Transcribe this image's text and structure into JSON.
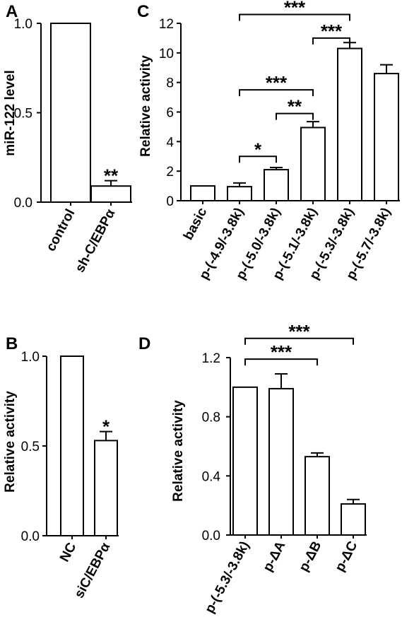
{
  "chart_data": [
    {
      "panel": "A",
      "type": "bar",
      "categories": [
        "control",
        "sh-C/EBPα"
      ],
      "values": [
        1.0,
        0.09
      ],
      "errors": [
        0,
        0.03
      ],
      "ylabel": "miR-122 level",
      "ylim": [
        0,
        1.0
      ],
      "yticks": [
        0.0,
        0.5,
        1.0
      ],
      "ytick_labels": [
        "0.0",
        "0.5",
        "1.0"
      ],
      "significance": [
        {
          "bar": 1,
          "label": "**"
        }
      ],
      "brackets": []
    },
    {
      "panel": "C",
      "type": "bar",
      "categories": [
        "basic",
        "p-(-4.9/-3.8k)",
        "p-(-5.0/-3.8k)",
        "p-(-5.1/-3.8k)",
        "p-(-5.3/-3.8k)",
        "p-(-5.7/-3.8k)"
      ],
      "values": [
        1.0,
        0.95,
        2.1,
        4.95,
        10.3,
        8.6
      ],
      "errors": [
        0,
        0.25,
        0.15,
        0.4,
        0.4,
        0.6
      ],
      "ylabel": "Relative activity",
      "ylim": [
        0,
        12
      ],
      "yticks": [
        0,
        2,
        4,
        6,
        8,
        10,
        12
      ],
      "ytick_labels": [
        "0",
        "2",
        "4",
        "6",
        "8",
        "10",
        "12"
      ],
      "significance": [],
      "brackets": [
        {
          "from": 1,
          "to": 4,
          "y": 12.6,
          "label": "***"
        },
        {
          "from": 3,
          "to": 4,
          "y": 11.0,
          "label": "***"
        },
        {
          "from": 1,
          "to": 3,
          "y": 7.5,
          "label": "***"
        },
        {
          "from": 2,
          "to": 3,
          "y": 5.9,
          "label": "**"
        },
        {
          "from": 1,
          "to": 2,
          "y": 3.0,
          "label": "*"
        }
      ]
    },
    {
      "panel": "B",
      "type": "bar",
      "categories": [
        "NC",
        "siC/EBPα"
      ],
      "values": [
        1.0,
        0.53
      ],
      "errors": [
        0,
        0.05
      ],
      "ylabel": "Relative activity",
      "ylim": [
        0,
        1.0
      ],
      "yticks": [
        0.0,
        0.5,
        1.0
      ],
      "ytick_labels": [
        "0.0",
        "0.5",
        "1.0"
      ],
      "significance": [
        {
          "bar": 1,
          "label": "*"
        }
      ],
      "brackets": []
    },
    {
      "panel": "D",
      "type": "bar",
      "categories": [
        "p-(-5.3/-3.8k)",
        "p-ΔA",
        "p-ΔB",
        "p-ΔC"
      ],
      "values": [
        1.0,
        0.99,
        0.53,
        0.21
      ],
      "errors": [
        0,
        0.1,
        0.025,
        0.03
      ],
      "ylabel": "Relative activity",
      "ylim": [
        0,
        1.2
      ],
      "yticks": [
        0.0,
        0.4,
        0.8,
        1.2
      ],
      "ytick_labels": [
        "0.0",
        "0.4",
        "0.8",
        "1.2"
      ],
      "significance": [],
      "brackets": [
        {
          "from": 0,
          "to": 3,
          "y": 1.33,
          "label": "***"
        },
        {
          "from": 0,
          "to": 2,
          "y": 1.19,
          "label": "***"
        }
      ]
    }
  ]
}
